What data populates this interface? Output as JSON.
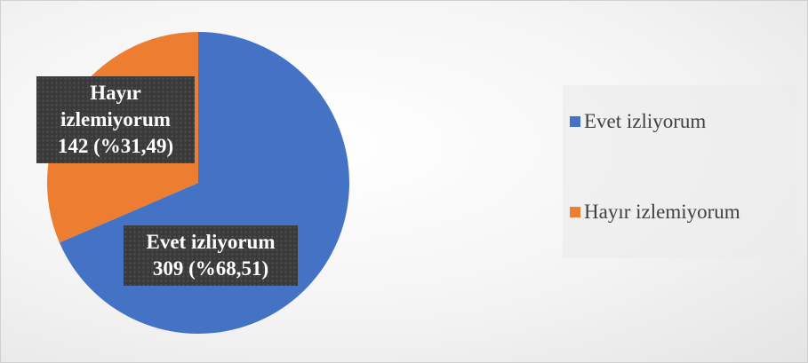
{
  "chart_data": {
    "type": "pie",
    "categories": [
      "Evet izliyorum",
      "Hayır izlemiyorum"
    ],
    "values": [
      309,
      142
    ],
    "value_labels": [
      "309 (%68,51)",
      "142 (%31,49)"
    ],
    "colors": [
      "#4472c4",
      "#ed7d31"
    ],
    "legend": "right"
  }
}
